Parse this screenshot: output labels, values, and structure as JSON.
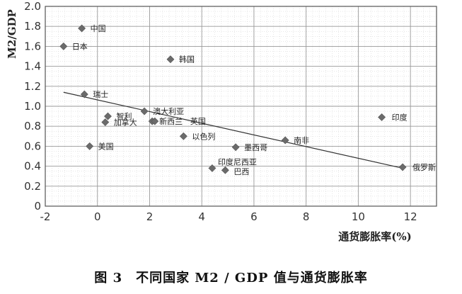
{
  "chart_data": {
    "type": "scatter",
    "title": "",
    "xlabel": "通货膨胀率(%)",
    "ylabel": "M2/GDP",
    "xlim": [
      -2,
      13
    ],
    "ylim": [
      0,
      2.0
    ],
    "xticks": [
      -2,
      0,
      2,
      4,
      6,
      8,
      10,
      12
    ],
    "yticks": [
      0,
      0.2,
      0.4,
      0.6,
      0.8,
      1.0,
      1.2,
      1.4,
      1.6,
      1.8,
      2.0
    ],
    "xtick_labels": [
      "-2",
      "0",
      "2",
      "4",
      "6",
      "8",
      "10",
      "12"
    ],
    "ytick_labels": [
      "0",
      "0.2",
      "0.4",
      "0.6",
      "0.8",
      "1.0",
      "1.2",
      "1.4",
      "1.6",
      "1.8",
      "2.0"
    ],
    "grid": true,
    "points": [
      {
        "label": "中国",
        "x": -0.6,
        "y": 1.78
      },
      {
        "label": "日本",
        "x": -1.3,
        "y": 1.6
      },
      {
        "label": "韩国",
        "x": 2.8,
        "y": 1.47
      },
      {
        "label": "瑞士",
        "x": -0.5,
        "y": 1.12
      },
      {
        "label": "智利",
        "x": 0.4,
        "y": 0.9
      },
      {
        "label": "澳大利亚",
        "x": 1.8,
        "y": 0.95
      },
      {
        "label": "加拿大",
        "x": 0.3,
        "y": 0.84
      },
      {
        "label": "新西兰",
        "x": 2.1,
        "y": 0.85
      },
      {
        "label": "英国",
        "x": 2.2,
        "y": 0.85
      },
      {
        "label": "以色列",
        "x": 3.3,
        "y": 0.7
      },
      {
        "label": "美国",
        "x": -0.3,
        "y": 0.6
      },
      {
        "label": "墨西哥",
        "x": 5.3,
        "y": 0.59
      },
      {
        "label": "南非",
        "x": 7.2,
        "y": 0.66
      },
      {
        "label": "印度尼西亚",
        "x": 4.4,
        "y": 0.38
      },
      {
        "label": "巴西",
        "x": 4.9,
        "y": 0.36
      },
      {
        "label": "印度",
        "x": 10.9,
        "y": 0.89
      },
      {
        "label": "俄罗斯",
        "x": 11.7,
        "y": 0.39
      }
    ],
    "trendline": {
      "x": [
        -1.3,
        11.7
      ],
      "y": [
        1.14,
        0.38
      ]
    }
  },
  "caption": "图 3　不同国家 M2 / GDP 值与通货膨胀率"
}
